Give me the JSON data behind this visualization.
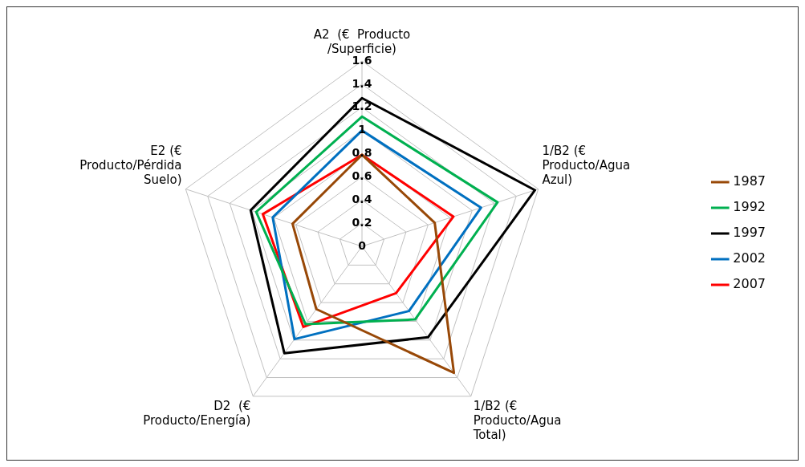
{
  "chart_data": {
    "type": "radar",
    "categories": [
      "A2  (€  Producto\n/Superficie)",
      "1/B2 (€\nProducto/Agua\nAzul)",
      "1/B2 (€\nProducto/Agua\nTotal)",
      "D2  (€\nProducto/Energía)",
      "E2 (€\nProducto/Pérdida\nSuelo)"
    ],
    "series": [
      {
        "name": "1987",
        "color": "#984807",
        "values": [
          0.79,
          0.66,
          1.35,
          0.67,
          0.63
        ]
      },
      {
        "name": "1992",
        "color": "#00b050",
        "values": [
          1.12,
          1.23,
          0.78,
          0.83,
          0.96
        ]
      },
      {
        "name": "1997",
        "color": "#000000",
        "values": [
          1.28,
          1.57,
          0.97,
          1.14,
          1.01
        ]
      },
      {
        "name": "2002",
        "color": "#0070c0",
        "values": [
          1.0,
          1.08,
          0.69,
          0.99,
          0.81
        ]
      },
      {
        "name": "2007",
        "color": "#ff0000",
        "values": [
          0.79,
          0.83,
          0.5,
          0.86,
          0.9
        ]
      }
    ],
    "ylim": [
      0,
      1.6
    ],
    "yticks": [
      0,
      0.2,
      0.4,
      0.6,
      0.8,
      1,
      1.2,
      1.4,
      1.6
    ],
    "grid": true,
    "legend": "right",
    "marker": "none"
  }
}
